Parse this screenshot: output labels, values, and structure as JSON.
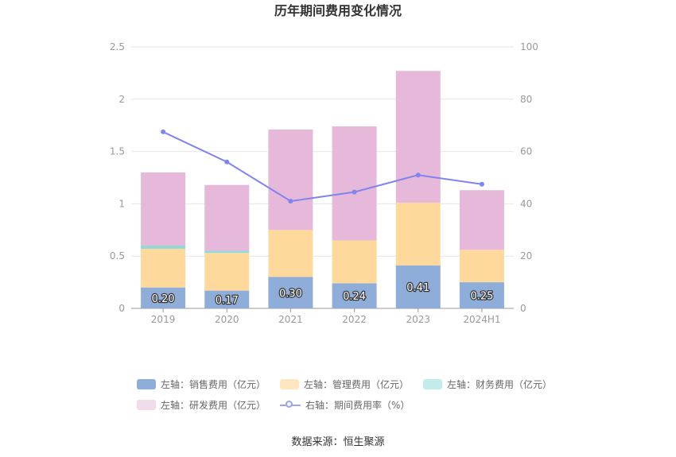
{
  "chart_data": {
    "type": "bar",
    "title": "历年期间费用变化情况",
    "categories": [
      "2019",
      "2020",
      "2021",
      "2022",
      "2023",
      "2024H1"
    ],
    "left_axis": {
      "min": 0,
      "max": 2.5,
      "ticks": [
        "0",
        "0.5",
        "1",
        "1.5",
        "2",
        "2.5"
      ]
    },
    "right_axis": {
      "min": 0,
      "max": 100,
      "ticks": [
        "0",
        "20",
        "40",
        "60",
        "80",
        "100"
      ]
    },
    "series": [
      {
        "name": "左轴：销售费用（亿元）",
        "kind": "bar",
        "color": "#8eadd9",
        "values": [
          0.2,
          0.17,
          0.3,
          0.24,
          0.41,
          0.25
        ],
        "labels": [
          "0.20",
          "0.17",
          "0.30",
          "0.24",
          "0.41",
          "0.25"
        ]
      },
      {
        "name": "左轴：管理费用（亿元）",
        "kind": "bar",
        "color": "#ffd99b",
        "values": [
          0.37,
          0.36,
          0.45,
          0.41,
          0.6,
          0.31
        ]
      },
      {
        "name": "左轴：财务费用（亿元）",
        "kind": "bar",
        "color": "#8fdbd8",
        "values": [
          0.03,
          0.02,
          0.0,
          0.0,
          0.0,
          0.0
        ]
      },
      {
        "name": "左轴：研发费用（亿元）",
        "kind": "bar",
        "color": "#e6b8da",
        "values": [
          0.7,
          0.63,
          0.96,
          1.09,
          1.26,
          0.57
        ]
      },
      {
        "name": "右轴：期间费用率（%）",
        "kind": "line",
        "color": "#7f84ee",
        "values": [
          67.5,
          56.0,
          41.0,
          44.5,
          51.0,
          47.5
        ]
      }
    ],
    "legend_position": "bottom",
    "grid": true
  },
  "source": "数据来源：恒生聚源"
}
